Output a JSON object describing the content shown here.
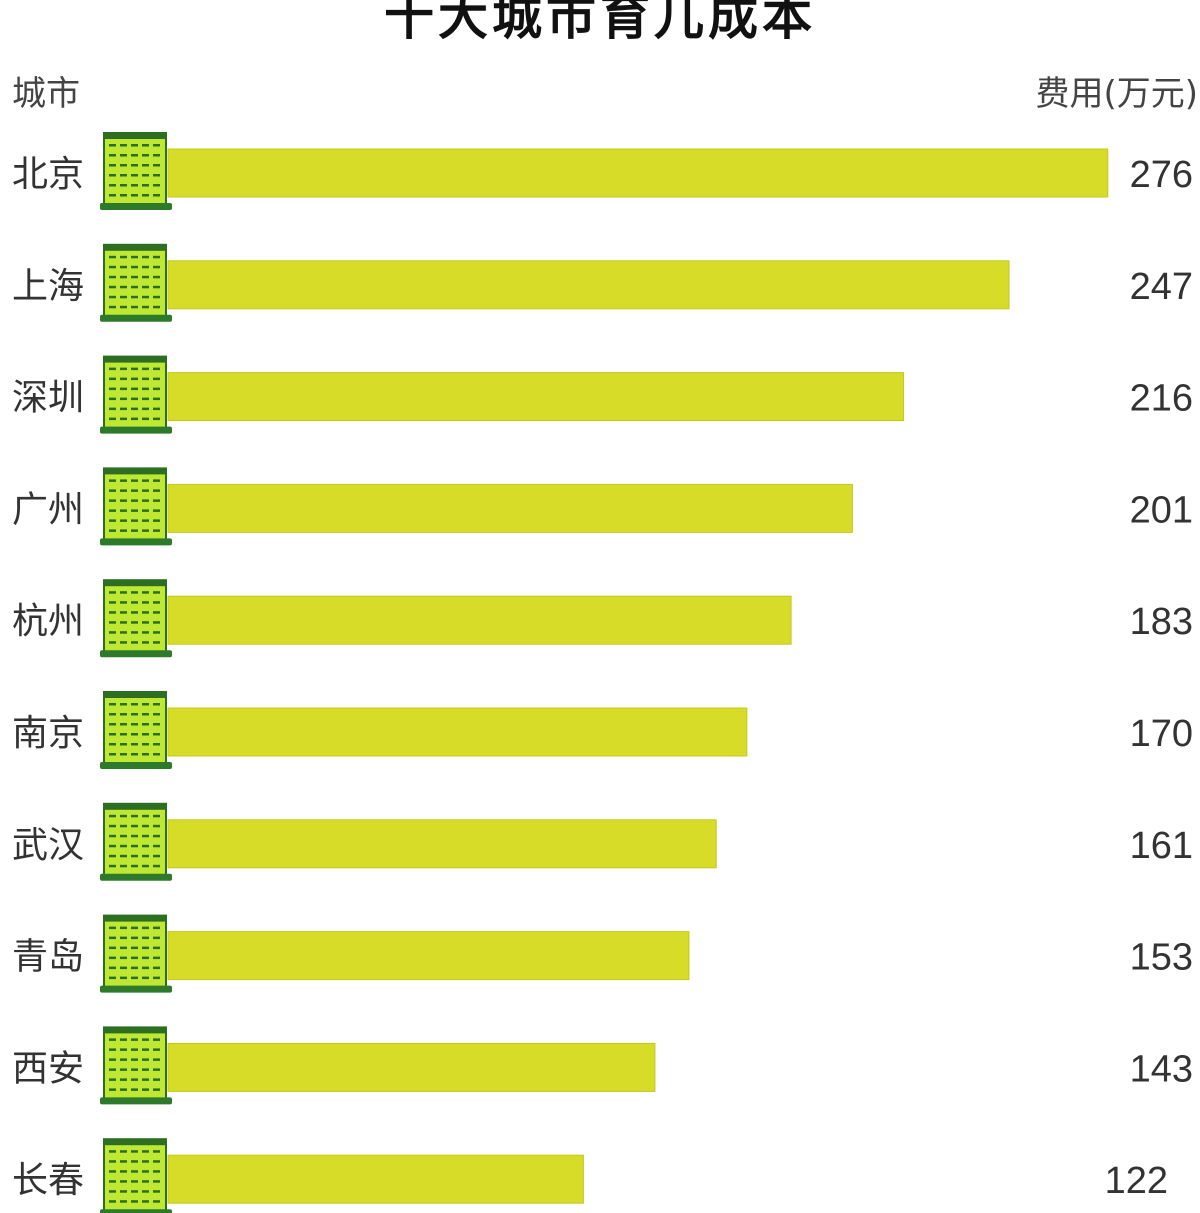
{
  "chart_data": {
    "type": "bar",
    "title": "十大城市育儿成本",
    "category_header": "城市",
    "value_header": "费用(万元)",
    "categories": [
      "北京",
      "上海",
      "深圳",
      "广州",
      "杭州",
      "南京",
      "武汉",
      "青岛",
      "西安",
      "长春"
    ],
    "values": [
      276,
      247,
      216,
      201,
      183,
      170,
      161,
      153,
      143,
      122
    ],
    "orientation": "horizontal",
    "grid": false,
    "legend": "none",
    "icon": "building-icon",
    "colors": {
      "bar": "#d6dc28",
      "bar_edge": "#c4c91e",
      "icon_fill": "#bfe832",
      "icon_window": "#2e6e22",
      "icon_base": "#2d7a2a"
    }
  }
}
